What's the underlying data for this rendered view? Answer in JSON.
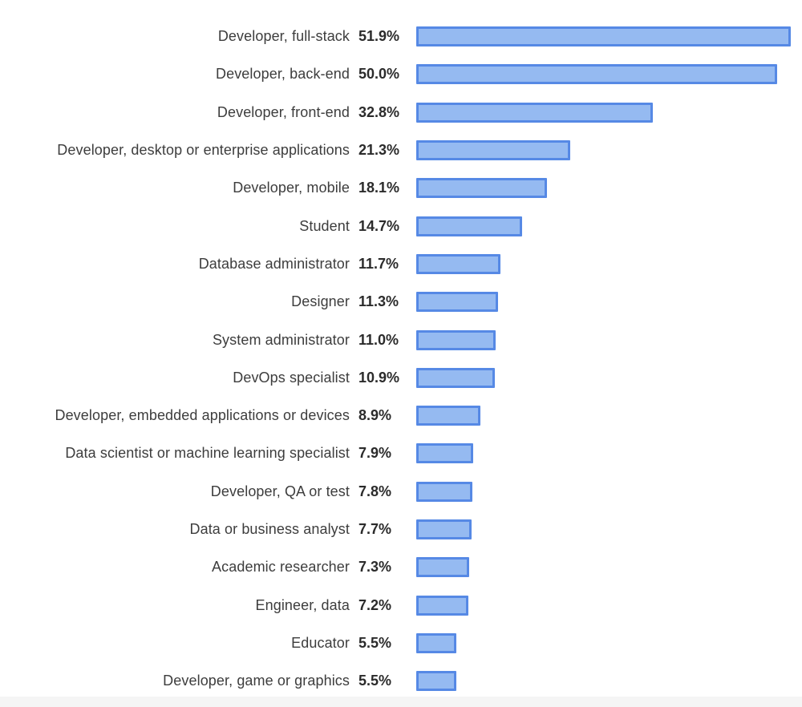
{
  "chart_data": {
    "type": "bar",
    "orientation": "horizontal",
    "title": "",
    "xlabel": "",
    "ylabel": "",
    "unit": "%",
    "grid": false,
    "legend": false,
    "xlim": [
      0,
      52
    ],
    "categories": [
      "Developer, full-stack",
      "Developer, back-end",
      "Developer, front-end",
      "Developer, desktop or enterprise applications",
      "Developer, mobile",
      "Student",
      "Database administrator",
      "Designer",
      "System administrator",
      "DevOps specialist",
      "Developer, embedded applications or devices",
      "Data scientist or machine learning specialist",
      "Developer, QA or test",
      "Data or business analyst",
      "Academic researcher",
      "Engineer, data",
      "Educator",
      "Developer, game or graphics"
    ],
    "values": [
      51.9,
      50.0,
      32.8,
      21.3,
      18.1,
      14.7,
      11.7,
      11.3,
      11.0,
      10.9,
      8.9,
      7.9,
      7.8,
      7.7,
      7.3,
      7.2,
      5.5,
      5.5
    ],
    "value_labels": [
      "51.9%",
      "50.0%",
      "32.8%",
      "21.3%",
      "18.1%",
      "14.7%",
      "11.7%",
      "11.3%",
      "11.0%",
      "10.9%",
      "8.9%",
      "7.9%",
      "7.8%",
      "7.7%",
      "7.3%",
      "7.2%",
      "5.5%",
      "5.5%"
    ],
    "colors": {
      "bar_fill": "#95BAF1",
      "bar_border": "#5689E5",
      "label_text": "#3D3D3D",
      "value_text": "#2B2B2B",
      "background": "#FFFFFF",
      "bottom_strip": "#F5F5F5"
    }
  }
}
